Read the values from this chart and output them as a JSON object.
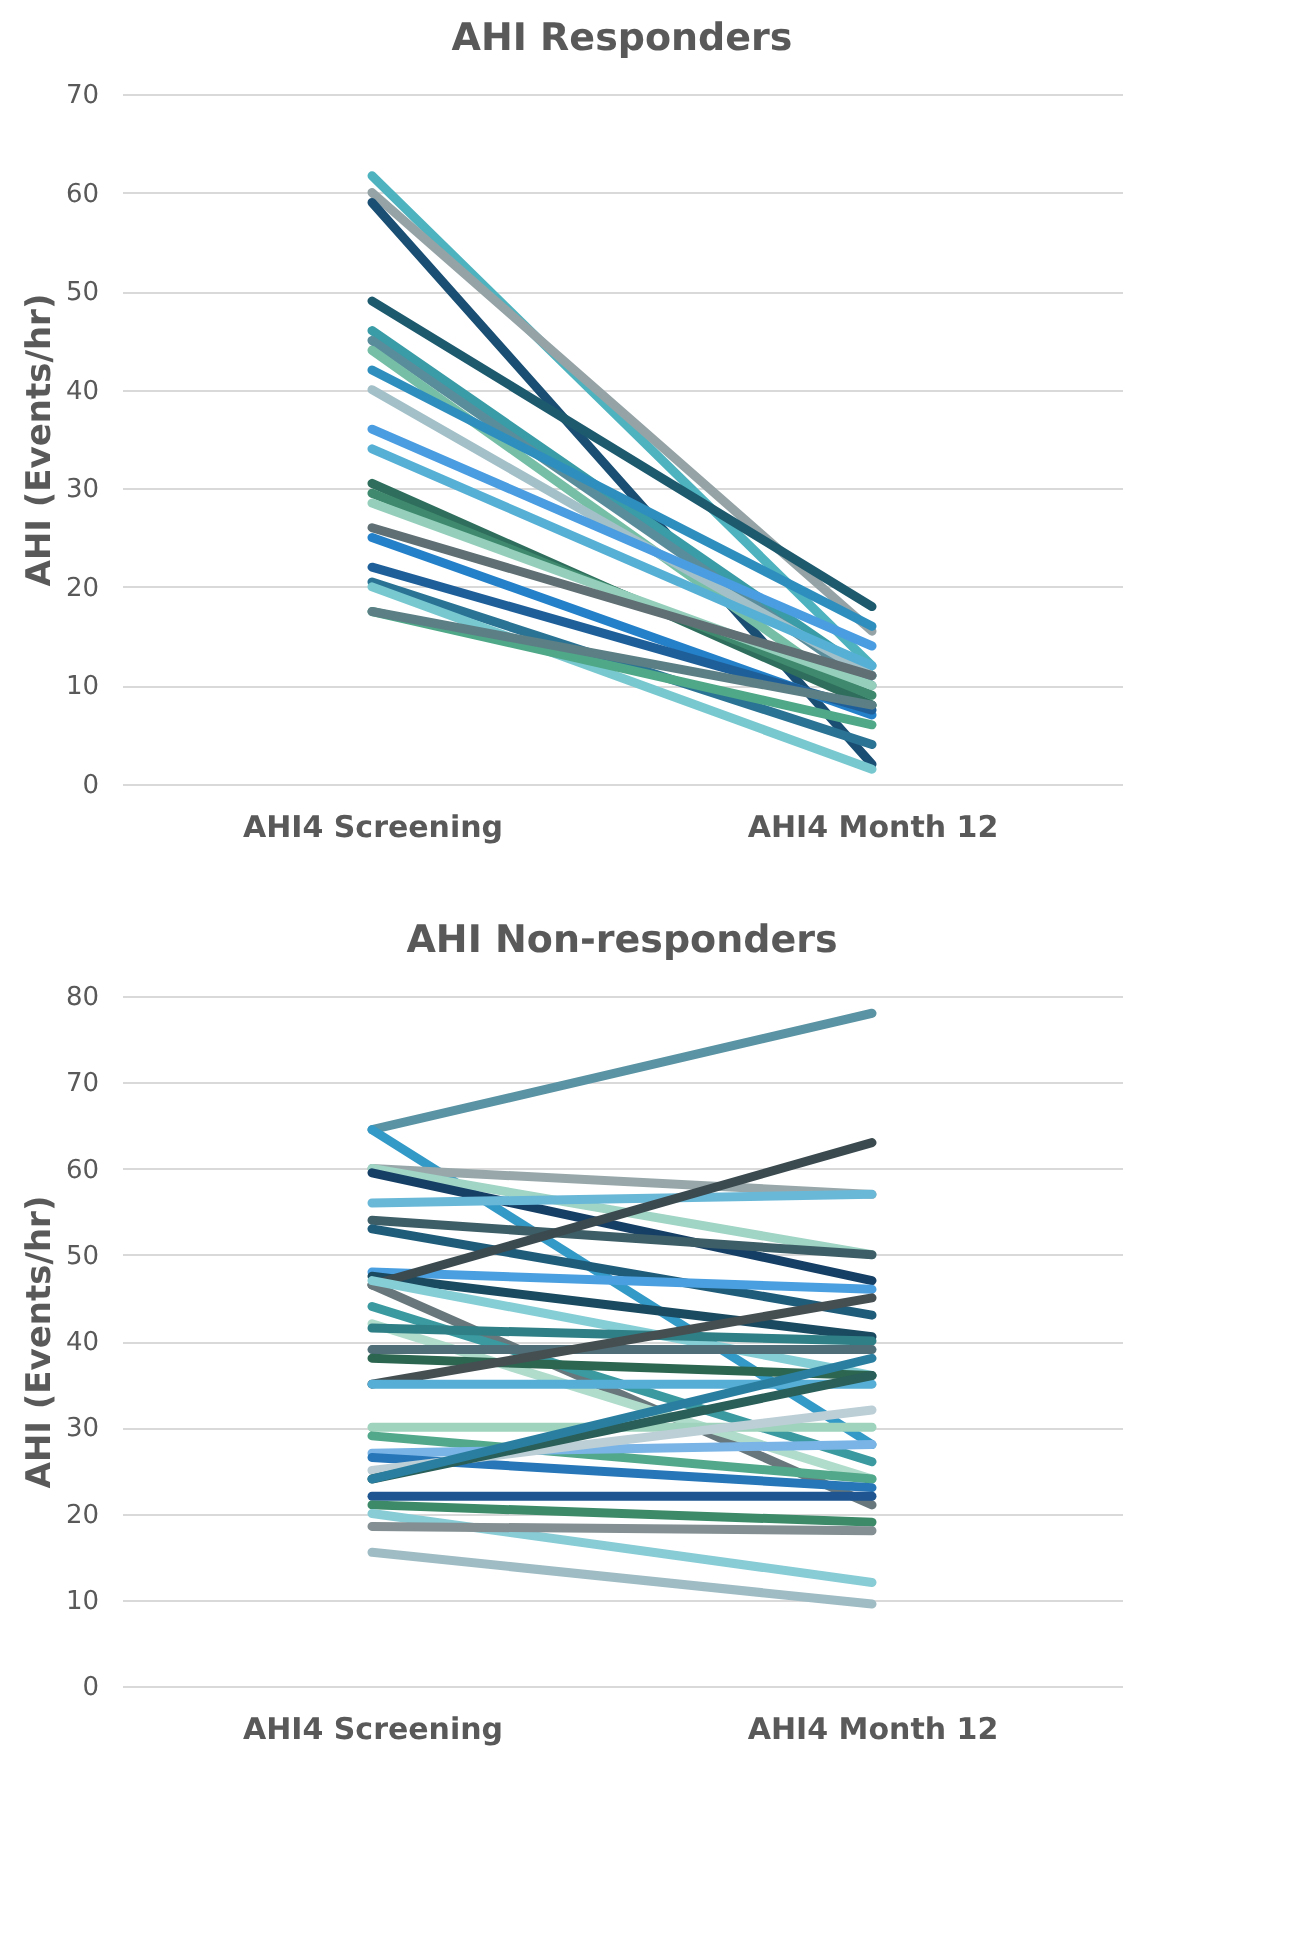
{
  "chart_data": [
    {
      "type": "line",
      "title": "AHI Responders",
      "ylabel": "AHI (Events/hr)",
      "categories": [
        "AHI4 Screening",
        "AHI4 Month 12"
      ],
      "ylim": [
        0,
        70
      ],
      "yticks": [
        0,
        10,
        20,
        30,
        40,
        50,
        60,
        70
      ],
      "grid": "y",
      "legend": false,
      "marker": "none",
      "line_style": "solid",
      "series": [
        {
          "color": "#4fb3bf",
          "values": [
            61.7,
            12
          ]
        },
        {
          "color": "#95a3a6",
          "values": [
            60,
            15.5
          ]
        },
        {
          "color": "#1a4f73",
          "values": [
            59,
            2
          ]
        },
        {
          "color": "#1d5a6e",
          "values": [
            49,
            18
          ]
        },
        {
          "color": "#3a9ca6",
          "values": [
            46,
            11
          ]
        },
        {
          "color": "#5a8d9c",
          "values": [
            45,
            10
          ]
        },
        {
          "color": "#76bfa6",
          "values": [
            44,
            8
          ]
        },
        {
          "color": "#2e8fbf",
          "values": [
            42,
            16
          ]
        },
        {
          "color": "#a3c0c8",
          "values": [
            40,
            11
          ]
        },
        {
          "color": "#4a9de0",
          "values": [
            36,
            14
          ]
        },
        {
          "color": "#56b0d6",
          "values": [
            34,
            12
          ]
        },
        {
          "color": "#2f6e5c",
          "values": [
            30.5,
            8
          ]
        },
        {
          "color": "#3f8a6e",
          "values": [
            29.5,
            9
          ]
        },
        {
          "color": "#95cfbc",
          "values": [
            28.5,
            10
          ]
        },
        {
          "color": "#5f6f73",
          "values": [
            26,
            11
          ]
        },
        {
          "color": "#2480c9",
          "values": [
            25,
            7
          ]
        },
        {
          "color": "#1f5f99",
          "values": [
            22,
            7.5
          ]
        },
        {
          "color": "#2a7394",
          "values": [
            20.5,
            4
          ]
        },
        {
          "color": "#78c8d0",
          "values": [
            20,
            1.5
          ]
        },
        {
          "color": "#4fa888",
          "values": [
            17.5,
            6
          ]
        },
        {
          "color": "#5b7f85",
          "values": [
            17.5,
            8
          ]
        }
      ]
    },
    {
      "type": "line",
      "title": "AHI Non-responders",
      "ylabel": "AHI (Events/hr)",
      "categories": [
        "AHI4 Screening",
        "AHI4 Month 12"
      ],
      "ylim": [
        0,
        80
      ],
      "yticks": [
        0,
        10,
        20,
        30,
        40,
        50,
        60,
        70,
        80
      ],
      "grid": "y",
      "legend": false,
      "marker": "none",
      "line_style": "solid",
      "series": [
        {
          "color": "#5a93a3",
          "values": [
            64.5,
            78
          ]
        },
        {
          "color": "#3399c7",
          "values": [
            64.5,
            28
          ]
        },
        {
          "color": "#98a8aa",
          "values": [
            60,
            57
          ]
        },
        {
          "color": "#a0d4c4",
          "values": [
            60,
            50
          ]
        },
        {
          "color": "#163f66",
          "values": [
            59.5,
            47
          ]
        },
        {
          "color": "#6ab8d8",
          "values": [
            56,
            57
          ]
        },
        {
          "color": "#3d5e66",
          "values": [
            54,
            50
          ]
        },
        {
          "color": "#1f5c7a",
          "values": [
            53,
            43
          ]
        },
        {
          "color": "#4a9fe0",
          "values": [
            48,
            46
          ]
        },
        {
          "color": "#1a4a60",
          "values": [
            47.5,
            40.5
          ]
        },
        {
          "color": "#3b4a4f",
          "values": [
            46.5,
            63
          ]
        },
        {
          "color": "#68777b",
          "values": [
            46.5,
            21
          ]
        },
        {
          "color": "#86ced6",
          "values": [
            47,
            36
          ]
        },
        {
          "color": "#3a9aa0",
          "values": [
            44,
            26
          ]
        },
        {
          "color": "#b0dccc",
          "values": [
            42,
            24
          ]
        },
        {
          "color": "#2f7f86",
          "values": [
            41.5,
            40
          ]
        },
        {
          "color": "#4f6e78",
          "values": [
            39,
            39
          ]
        },
        {
          "color": "#2d6650",
          "values": [
            38,
            36
          ]
        },
        {
          "color": "#454f52",
          "values": [
            35,
            45
          ]
        },
        {
          "color": "#56aed6",
          "values": [
            35,
            35
          ]
        },
        {
          "color": "#9fd3bd",
          "values": [
            30,
            30
          ]
        },
        {
          "color": "#52a88a",
          "values": [
            29,
            24
          ]
        },
        {
          "color": "#7ab4e6",
          "values": [
            27,
            28
          ]
        },
        {
          "color": "#2676b8",
          "values": [
            26.5,
            23
          ]
        },
        {
          "color": "#bccfd6",
          "values": [
            25,
            32
          ]
        },
        {
          "color": "#2a5e58",
          "values": [
            24,
            36
          ]
        },
        {
          "color": "#2a7fa0",
          "values": [
            24,
            38
          ]
        },
        {
          "color": "#1f5590",
          "values": [
            22,
            22
          ]
        },
        {
          "color": "#3c8a68",
          "values": [
            21,
            19
          ]
        },
        {
          "color": "#88ccd6",
          "values": [
            20,
            12
          ]
        },
        {
          "color": "#838f92",
          "values": [
            18.5,
            18
          ]
        },
        {
          "color": "#9fbcc4",
          "values": [
            15.5,
            9.5
          ]
        }
      ]
    }
  ]
}
